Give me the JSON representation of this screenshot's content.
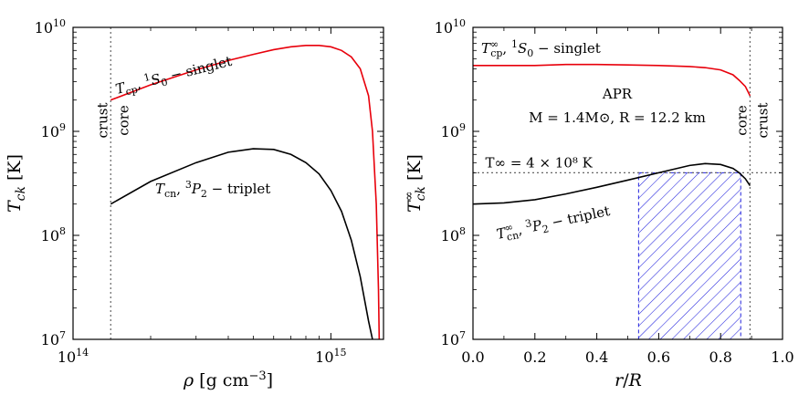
{
  "chart_data": [
    {
      "type": "line",
      "x_scale": "log",
      "y_scale": "log",
      "xlim": [
        100000000000000.0,
        1600000000000000.0
      ],
      "ylim": [
        10000000.0,
        10000000000.0
      ],
      "xlabel": "ρ [g cm⁻³]",
      "ylabel": "Tck [K]",
      "x_ticks": [
        {
          "value": 100000000000000.0,
          "base": "10",
          "exp": "14"
        },
        {
          "value": 1000000000000000.0,
          "base": "10",
          "exp": "15"
        }
      ],
      "y_ticks": [
        {
          "value": 10000000.0,
          "base": "10",
          "exp": "7"
        },
        {
          "value": 100000000.0,
          "base": "10",
          "exp": "8"
        },
        {
          "value": 1000000000.0,
          "base": "10",
          "exp": "9"
        },
        {
          "value": 10000000000.0,
          "base": "10",
          "exp": "10"
        }
      ],
      "crust_core_boundary": 140000000000000.0,
      "region_labels": {
        "left": "crust",
        "right": "core"
      },
      "series": [
        {
          "name": "Tcp, ¹S₀ – singlet",
          "color": "#e8000b",
          "x": [
            140000000000000.0,
            200000000000000.0,
            300000000000000.0,
            400000000000000.0,
            500000000000000.0,
            600000000000000.0,
            700000000000000.0,
            800000000000000.0,
            900000000000000.0,
            1000000000000000.0,
            1100000000000000.0,
            1200000000000000.0,
            1300000000000000.0,
            1400000000000000.0,
            1450000000000000.0,
            1500000000000000.0,
            1530000000000000.0,
            1540000000000000.0
          ],
          "y": [
            2000000000.0,
            2800000000.0,
            3900000000.0,
            4800000000.0,
            5500000000.0,
            6100000000.0,
            6500000000.0,
            6700000000.0,
            6700000000.0,
            6500000000.0,
            6000000000.0,
            5200000000.0,
            4000000000.0,
            2200000000.0,
            1000000000.0,
            200000000.0,
            30000000.0,
            10000000.0
          ]
        },
        {
          "name": "Tcn, ³P₂ – triplet",
          "color": "#000000",
          "x": [
            140000000000000.0,
            200000000000000.0,
            300000000000000.0,
            400000000000000.0,
            500000000000000.0,
            600000000000000.0,
            700000000000000.0,
            800000000000000.0,
            900000000000000.0,
            1000000000000000.0,
            1100000000000000.0,
            1200000000000000.0,
            1300000000000000.0,
            1400000000000000.0,
            1450000000000000.0,
            1470000000000000.0
          ],
          "y": [
            200000000.0,
            330000000.0,
            500000000.0,
            630000000.0,
            680000000.0,
            670000000.0,
            600000000.0,
            500000000.0,
            390000000.0,
            270000000.0,
            170000000.0,
            90000000.0,
            40000000.0,
            15000000.0,
            10000000.0,
            7000000.0
          ]
        }
      ],
      "annotations": {
        "singlet": {
          "main": "T",
          "sub": "cp",
          "sup": "1",
          "state": "S",
          "state_sub": "0",
          "rest": " − singlet"
        },
        "triplet": {
          "main": "T",
          "sub": "cn",
          "sup": "3",
          "state": "P",
          "state_sub": "2",
          "rest": " − triplet"
        }
      }
    },
    {
      "type": "line",
      "x_scale": "linear",
      "y_scale": "log",
      "xlim": [
        0.0,
        1.0
      ],
      "ylim": [
        10000000.0,
        10000000000.0
      ],
      "xlabel": "r/R",
      "ylabel": "T∞ck [K]",
      "x_ticks": [
        {
          "value": 0.0,
          "label": "0.0"
        },
        {
          "value": 0.2,
          "label": "0.2"
        },
        {
          "value": 0.4,
          "label": "0.4"
        },
        {
          "value": 0.6,
          "label": "0.6"
        },
        {
          "value": 0.8,
          "label": "0.8"
        },
        {
          "value": 1.0,
          "label": "1.0"
        }
      ],
      "y_ticks": [
        {
          "value": 10000000.0,
          "base": "10",
          "exp": "7"
        },
        {
          "value": 100000000.0,
          "base": "10",
          "exp": "8"
        },
        {
          "value": 1000000000.0,
          "base": "10",
          "exp": "9"
        },
        {
          "value": 10000000000.0,
          "base": "10",
          "exp": "10"
        }
      ],
      "core_crust_boundary": 0.895,
      "region_labels": {
        "left": "core",
        "right": "crust"
      },
      "reference_temperature": 400000000.0,
      "reference_label": "T∞ = 4 × 10⁸ K",
      "model_label": "APR",
      "model_params": "M = 1.4M⊙, R = 12.2 km",
      "hatched_region": {
        "x": [
          0.535,
          0.865
        ],
        "y": [
          10000000.0,
          400000000.0
        ],
        "color": "#2222dd"
      },
      "series": [
        {
          "name": "T∞cp, ¹S₀ – singlet",
          "color": "#e8000b",
          "x": [
            0.0,
            0.1,
            0.2,
            0.3,
            0.4,
            0.5,
            0.6,
            0.7,
            0.75,
            0.8,
            0.84,
            0.86,
            0.88,
            0.895
          ],
          "y": [
            4300000000.0,
            4300000000.0,
            4300000000.0,
            4400000000.0,
            4400000000.0,
            4350000000.0,
            4300000000.0,
            4200000000.0,
            4100000000.0,
            3900000000.0,
            3500000000.0,
            3100000000.0,
            2700000000.0,
            2200000000.0
          ]
        },
        {
          "name": "T∞cn, ³P₂ – triplet",
          "color": "#000000",
          "x": [
            0.0,
            0.1,
            0.2,
            0.3,
            0.4,
            0.5,
            0.6,
            0.7,
            0.75,
            0.8,
            0.84,
            0.86,
            0.88,
            0.895
          ],
          "y": [
            200000000.0,
            205000000.0,
            220000000.0,
            250000000.0,
            290000000.0,
            340000000.0,
            400000000.0,
            470000000.0,
            490000000.0,
            480000000.0,
            440000000.0,
            400000000.0,
            350000000.0,
            300000000.0
          ]
        }
      ],
      "annotations": {
        "singlet": {
          "main": "T",
          "sub": "cp",
          "sup": "∞",
          "sup2": "1",
          "state": "S",
          "state_sub": "0",
          "rest": " − singlet"
        },
        "triplet": {
          "main": "T",
          "sub": "cn",
          "sup": "∞",
          "sup2": "3",
          "state": "P",
          "state_sub": "2",
          "rest": " − triplet"
        }
      }
    }
  ]
}
